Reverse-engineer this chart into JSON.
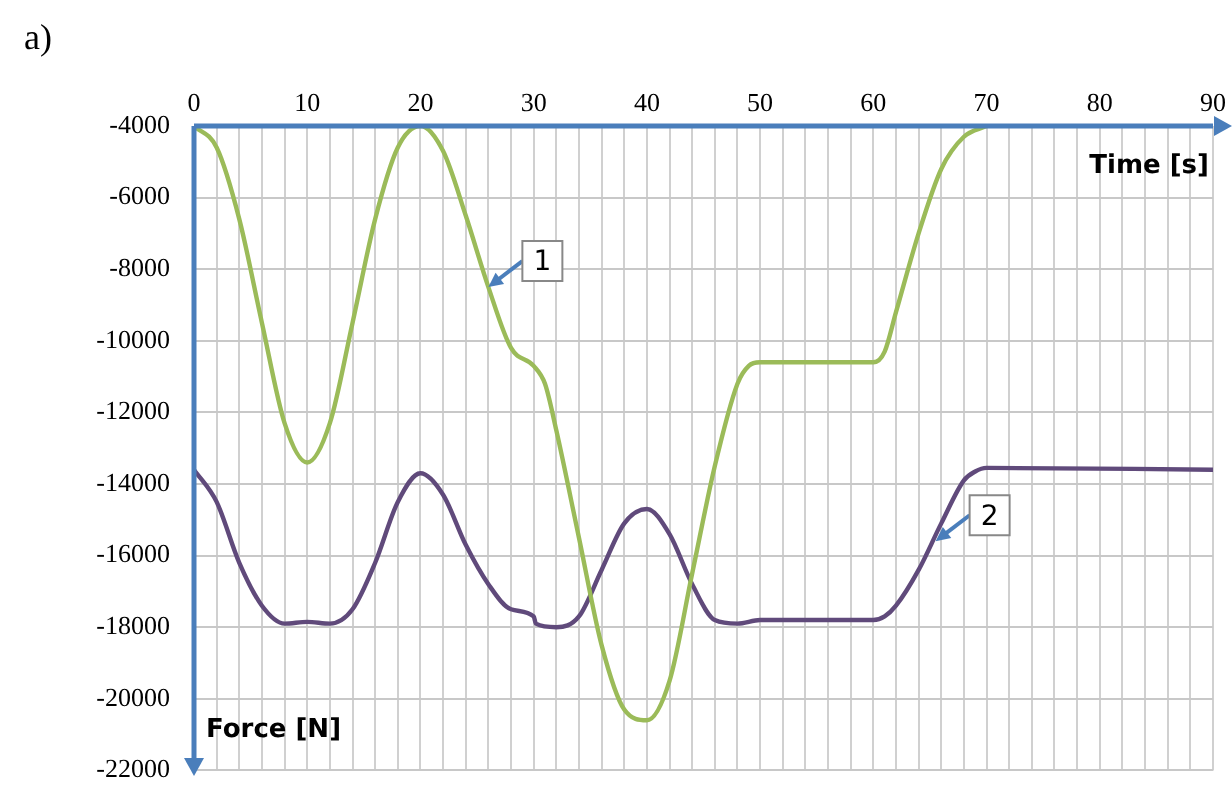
{
  "chart_data": {
    "type": "line",
    "title": "a)",
    "xlabel": "Time [s]",
    "ylabel": "Force [N]",
    "xlim": [
      0,
      90
    ],
    "xticks": [
      0,
      {
        "value": 2,
        "label": null
      },
      {
        "value": 4,
        "label": null
      },
      {
        "value": 6,
        "label": null
      },
      {
        "value": 8,
        "label": null
      },
      10,
      {
        "value": 12,
        "label": null
      },
      {
        "value": 14,
        "label": null
      },
      {
        "value": 16,
        "label": null
      },
      {
        "value": 18,
        "label": null
      },
      20,
      {
        "value": 22,
        "label": null
      },
      {
        "value": 24,
        "label": null
      },
      {
        "value": 26,
        "label": null
      },
      {
        "value": 28,
        "label": null
      },
      30,
      {
        "value": 32,
        "label": null
      },
      {
        "value": 34,
        "label": null
      },
      {
        "value": 36,
        "label": null
      },
      {
        "value": 38,
        "label": null
      },
      40,
      {
        "value": 42,
        "label": null
      },
      {
        "value": 44,
        "label": null
      },
      {
        "value": 46,
        "label": null
      },
      {
        "value": 48,
        "label": null
      },
      50,
      {
        "value": 52,
        "label": null
      },
      {
        "value": 54,
        "label": null
      },
      {
        "value": 56,
        "label": null
      },
      {
        "value": 58,
        "label": null
      },
      60,
      {
        "value": 62,
        "label": null
      },
      {
        "value": 64,
        "label": null
      },
      {
        "value": 66,
        "label": null
      },
      {
        "value": 68,
        "label": null
      },
      70,
      {
        "value": 72,
        "label": null
      },
      {
        "value": 74,
        "label": null
      },
      {
        "value": 76,
        "label": null
      },
      {
        "value": 78,
        "label": null
      },
      80,
      {
        "value": 82,
        "label": null
      },
      {
        "value": 84,
        "label": null
      },
      {
        "value": 86,
        "label": null
      },
      {
        "value": 88,
        "label": null
      },
      90
    ],
    "ylim": [
      -22000,
      -4000
    ],
    "yticks": [
      -22000,
      -20000,
      -18000,
      -16000,
      -14000,
      -12000,
      -10000,
      -8000,
      -6000,
      -4000
    ],
    "grid": true,
    "legend": false,
    "marker": "none",
    "line_style": "solid",
    "series": [
      {
        "color": "#9bbb59",
        "x": [
          0,
          2,
          4,
          6,
          8,
          10,
          12,
          14,
          16,
          18,
          20,
          22,
          24,
          26,
          28,
          30,
          31,
          32,
          34,
          36,
          38,
          40,
          42,
          44,
          46,
          48,
          49,
          50,
          60,
          61,
          62,
          64,
          66,
          68,
          70
        ],
        "values": [
          -4000,
          -4600,
          -6600,
          -9500,
          -12300,
          -13400,
          -12300,
          -9500,
          -6600,
          -4600,
          -4000,
          -4700,
          -6500,
          -8500,
          -10200,
          -10700,
          -11200,
          -12500,
          -15500,
          -18500,
          -20300,
          -20600,
          -19500,
          -16500,
          -13500,
          -11200,
          -10700,
          -10600,
          -10600,
          -10300,
          -9200,
          -7000,
          -5200,
          -4300,
          -4000
        ]
      },
      {
        "color": "#604a7b",
        "x": [
          0,
          2,
          4,
          6,
          8,
          10,
          12,
          14,
          16,
          18,
          20,
          22,
          24,
          26,
          28,
          30,
          30.2,
          32,
          34,
          36,
          38,
          40,
          42,
          44,
          46,
          48,
          50,
          60,
          61,
          62,
          64,
          66,
          68,
          69,
          70,
          90
        ],
        "values": [
          -13600,
          -14500,
          -16200,
          -17400,
          -17900,
          -17850,
          -17900,
          -17500,
          -16200,
          -14500,
          -13700,
          -14300,
          -15700,
          -16800,
          -17500,
          -17700,
          -17900,
          -18000,
          -17700,
          -16400,
          -15100,
          -14700,
          -15400,
          -16800,
          -17800,
          -17900,
          -17800,
          -17800,
          -17700,
          -17400,
          -16400,
          -15100,
          -13900,
          -13650,
          -13550,
          -13600
        ]
      }
    ],
    "annotations": [
      {
        "text": "1",
        "x": 26,
        "y": -8500
      },
      {
        "text": "2",
        "x": 65.5,
        "y": -15600
      }
    ]
  }
}
